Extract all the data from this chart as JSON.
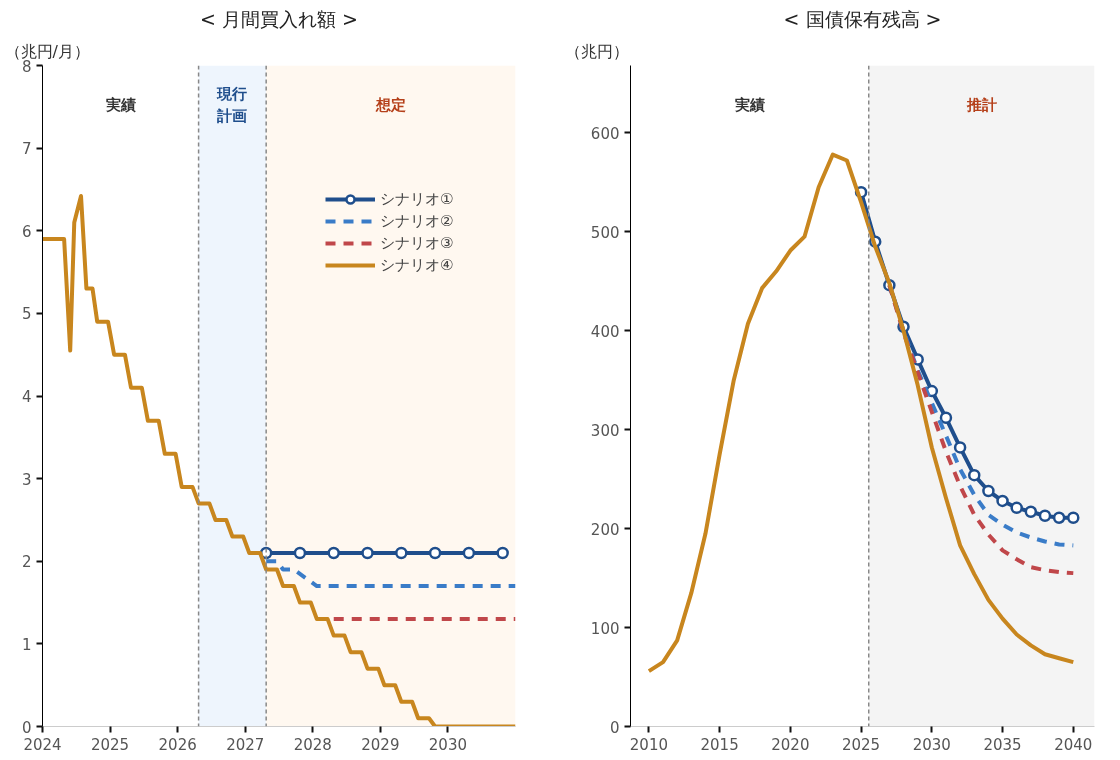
{
  "chart_data": [
    {
      "type": "line",
      "title": "< 月間買入れ額 >",
      "ylabel": "（兆円/月）",
      "xlim": [
        2024,
        2031
      ],
      "xticks": [
        2024,
        2025,
        2026,
        2027,
        2028,
        2029,
        2030
      ],
      "ylim": [
        0,
        8
      ],
      "yticks": [
        0,
        1,
        2,
        3,
        4,
        5,
        6,
        7,
        8
      ],
      "grid": false,
      "legend": "top right",
      "annotations": [
        "実績"
      ],
      "ref_lines": [
        {
          "axis": "x",
          "value": 2026.31,
          "color": "#888888",
          "line_style": "dashed"
        },
        {
          "axis": "x",
          "value": 2027.31,
          "color": "#888888",
          "line_style": "dashed"
        }
      ],
      "bands": [
        {
          "axis": "x",
          "from": 2026.31,
          "to": 2027.31,
          "label": "現行計画",
          "color": "#eef5fd"
        },
        {
          "axis": "x",
          "from": 2027.31,
          "to": 2031,
          "label": "想定",
          "color": "#fff8f0"
        }
      ],
      "series": [
        {
          "name": "シナリオ①",
          "color": "#1f4e8c",
          "marker": "circle",
          "line_style": "solid",
          "x": [
            2027.31,
            2027.81,
            2028.31,
            2028.81,
            2029.31,
            2029.81,
            2030.31,
            2030.81
          ],
          "values": [
            2.1,
            2.1,
            2.1,
            2.1,
            2.1,
            2.1,
            2.1,
            2.1
          ]
        },
        {
          "name": "シナリオ②",
          "color": "#3a7cc8",
          "marker": "none",
          "line_style": "dashed",
          "x": [
            2027.31,
            2027.47,
            2027.56,
            2027.72,
            2028.06,
            2031
          ],
          "values": [
            2.0,
            2.0,
            1.9,
            1.9,
            1.7,
            1.7
          ]
        },
        {
          "name": "シナリオ③",
          "color": "#c0474a",
          "marker": "none",
          "line_style": "dashed",
          "x": [
            2028.31,
            2031
          ],
          "values": [
            1.3,
            1.3
          ]
        },
        {
          "name": "シナリオ④",
          "color": "#c8861e",
          "marker": "none",
          "line_style": "solid",
          "x": [
            2024,
            2024.32,
            2024.41,
            2024.47,
            2024.57,
            2024.65,
            2024.74,
            2024.81,
            2024.97,
            2025.06,
            2025.22,
            2025.31,
            2025.47,
            2025.56,
            2025.72,
            2025.81,
            2025.97,
            2026.06,
            2026.22,
            2026.31,
            2026.47,
            2026.56,
            2026.72,
            2026.81,
            2026.97,
            2027.06,
            2027.22,
            2027.31,
            2027.47,
            2027.56,
            2027.72,
            2027.81,
            2027.97,
            2028.06,
            2028.22,
            2028.31,
            2028.47,
            2028.56,
            2028.72,
            2028.81,
            2028.97,
            2029.06,
            2029.22,
            2029.31,
            2029.47,
            2029.56,
            2029.72,
            2029.81,
            2031
          ],
          "values": [
            5.9,
            5.9,
            4.55,
            6.1,
            6.42,
            5.3,
            5.3,
            4.9,
            4.9,
            4.5,
            4.5,
            4.1,
            4.1,
            3.7,
            3.7,
            3.3,
            3.3,
            2.9,
            2.9,
            2.7,
            2.7,
            2.5,
            2.5,
            2.3,
            2.3,
            2.1,
            2.1,
            1.9,
            1.9,
            1.7,
            1.7,
            1.5,
            1.5,
            1.3,
            1.3,
            1.1,
            1.1,
            0.9,
            0.9,
            0.7,
            0.7,
            0.5,
            0.5,
            0.3,
            0.3,
            0.1,
            0.1,
            0,
            0
          ]
        }
      ]
    },
    {
      "type": "line",
      "title": "< 国債保有残高 >",
      "ylabel": "（兆円）",
      "xlim": [
        2008.7,
        2041.5
      ],
      "xticks": [
        2010,
        2015,
        2020,
        2025,
        2030,
        2035,
        2040
      ],
      "ylim": [
        0,
        668
      ],
      "yticks": [
        0,
        100,
        200,
        300,
        400,
        500,
        600
      ],
      "grid": false,
      "annotations": [
        "実績"
      ],
      "ref_lines": [
        {
          "axis": "x",
          "value": 2025.54,
          "color": "#888888",
          "line_style": "dashed"
        }
      ],
      "bands": [
        {
          "axis": "x",
          "from": 2025.54,
          "to": 2041.5,
          "label": "推計",
          "color": "#f4f4f4"
        }
      ],
      "series": [
        {
          "color": "#1f4e8c",
          "marker": "circle",
          "line_style": "solid",
          "x": [
            2025,
            2026,
            2027,
            2028,
            2029,
            2030,
            2031,
            2032,
            2033,
            2034,
            2035,
            2036,
            2037,
            2038,
            2039,
            2040
          ],
          "values": [
            540,
            490,
            446,
            404,
            371,
            339,
            312,
            282,
            254,
            238,
            228,
            221,
            217,
            213,
            211,
            211
          ]
        },
        {
          "color": "#3a7cc8",
          "marker": "none",
          "line_style": "dashed",
          "x": [
            2027,
            2028,
            2029,
            2030,
            2031,
            2032,
            2033,
            2034,
            2035,
            2036,
            2037,
            2038,
            2039,
            2040
          ],
          "values": [
            446,
            400,
            360,
            327,
            294,
            260,
            234,
            214,
            204,
            196,
            191,
            187,
            184,
            183
          ]
        },
        {
          "color": "#c0474a",
          "marker": "none",
          "line_style": "dashed",
          "x": [
            2027,
            2028,
            2029,
            2030,
            2031,
            2032,
            2033,
            2034,
            2035,
            2036,
            2037,
            2038,
            2039,
            2040
          ],
          "values": [
            446,
            398,
            358,
            318,
            278,
            243,
            214,
            194,
            178,
            169,
            161,
            158,
            156,
            155
          ]
        },
        {
          "color": "#c8861e",
          "marker": "none",
          "line_style": "solid",
          "x": [
            2010,
            2011,
            2012,
            2013,
            2014,
            2015,
            2016,
            2017,
            2018,
            2019,
            2020,
            2021,
            2022,
            2023,
            2024,
            2025,
            2026,
            2027,
            2028,
            2029,
            2030,
            2031,
            2032,
            2033,
            2034,
            2035,
            2036,
            2037,
            2038,
            2039,
            2040
          ],
          "values": [
            56,
            65,
            87,
            135,
            195,
            275,
            350,
            407,
            443,
            460,
            481,
            495,
            545,
            578,
            572,
            530,
            485,
            448,
            400,
            345,
            282,
            231,
            183,
            154,
            128,
            109,
            93,
            82,
            73,
            69,
            65
          ]
        }
      ]
    }
  ]
}
